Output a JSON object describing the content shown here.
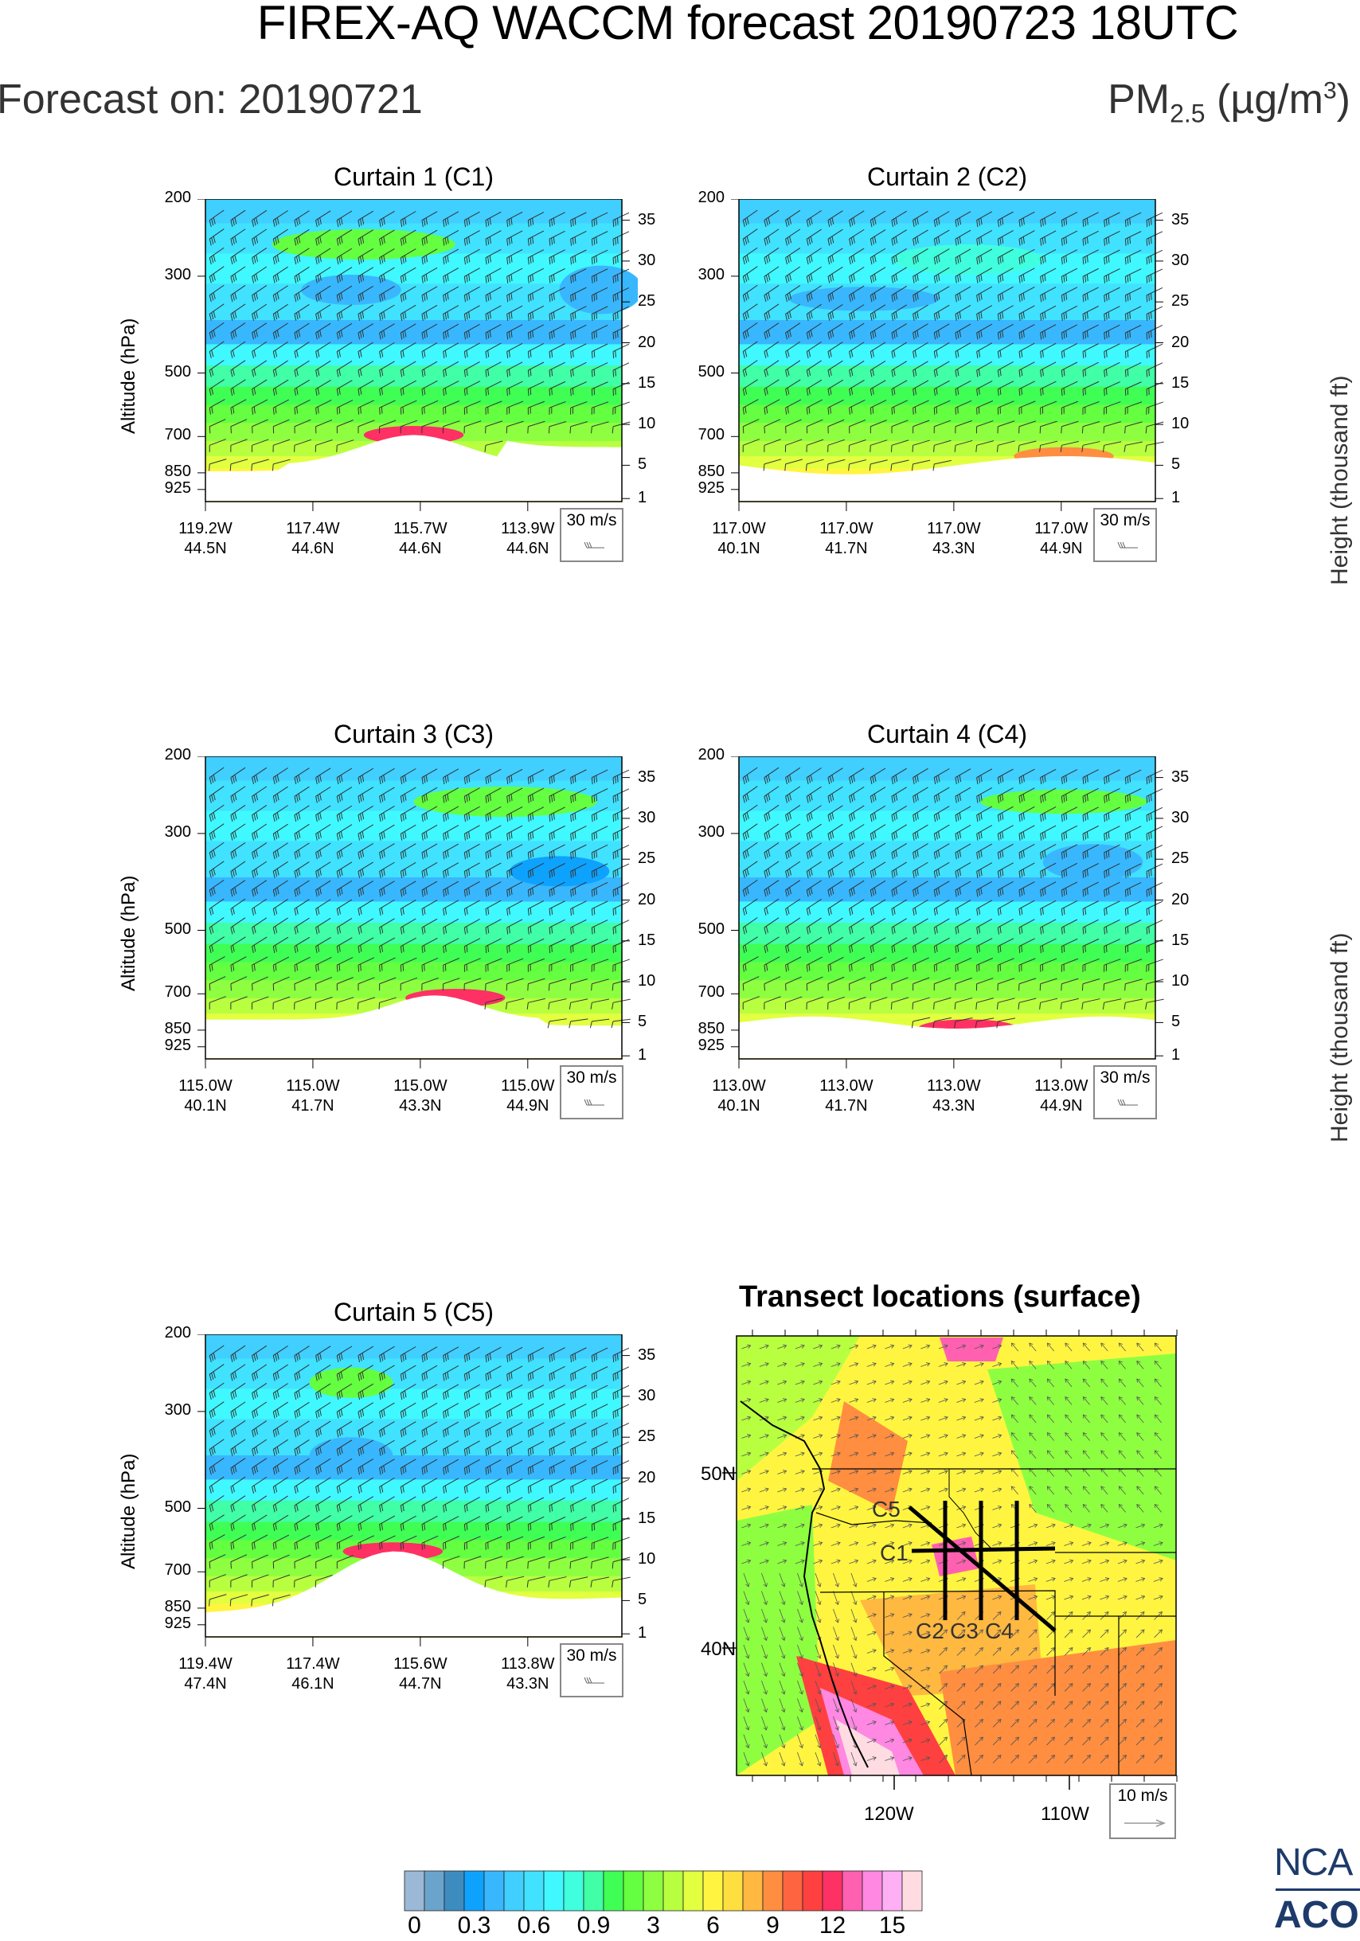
{
  "header": {
    "title": "FIREX-AQ WACCM forecast 20190723 18UTC",
    "forecast_on": "Forecast on: 20190721",
    "units_base": "PM",
    "units_sub": "2.5",
    "units_mid": " (µg/m",
    "units_sup": "3",
    "units_end": ")"
  },
  "right_axis_title": "Height (thousand ft)",
  "left_axis_title": "Altitude (hPa)",
  "wind_reference": {
    "curtain_label": "30 m/s",
    "map_label": "10 m/s"
  },
  "chart_data": [
    {
      "type": "heatmap",
      "title": "Curtain 1 (C1)",
      "ylabel": "Altitude (hPa)",
      "y2label": "Height (thousand ft)",
      "yticks": [
        "200",
        "300",
        "500",
        "700",
        "850",
        "925"
      ],
      "y2ticks": [
        "35",
        "30",
        "25",
        "20",
        "15",
        "10",
        "5",
        "1"
      ],
      "xticks": [
        {
          "lon": "119.2W",
          "lat": "44.5N"
        },
        {
          "lon": "117.4W",
          "lat": "44.6N"
        },
        {
          "lon": "115.7W",
          "lat": "44.6N"
        },
        {
          "lon": "113.9W",
          "lat": "44.6N"
        }
      ],
      "variable": "PM2.5 (ug/m3)",
      "features": "green aerosol layer near 250 hPa mid-transect; high values (red/pink) near surface around 115.7W"
    },
    {
      "type": "heatmap",
      "title": "Curtain 2 (C2)",
      "yticks": [
        "200",
        "300",
        "500",
        "700",
        "850",
        "925"
      ],
      "y2ticks": [
        "35",
        "30",
        "25",
        "20",
        "15",
        "10",
        "5",
        "1"
      ],
      "xticks": [
        {
          "lon": "117.0W",
          "lat": "40.1N"
        },
        {
          "lon": "117.0W",
          "lat": "41.7N"
        },
        {
          "lon": "117.0W",
          "lat": "43.3N"
        },
        {
          "lon": "117.0W",
          "lat": "44.9N"
        }
      ],
      "variable": "PM2.5 (ug/m3)"
    },
    {
      "type": "heatmap",
      "title": "Curtain 3 (C3)",
      "ylabel": "Altitude (hPa)",
      "yticks": [
        "200",
        "300",
        "500",
        "700",
        "850",
        "925"
      ],
      "y2ticks": [
        "35",
        "30",
        "25",
        "20",
        "15",
        "10",
        "5",
        "1"
      ],
      "xticks": [
        {
          "lon": "115.0W",
          "lat": "40.1N"
        },
        {
          "lon": "115.0W",
          "lat": "41.7N"
        },
        {
          "lon": "115.0W",
          "lat": "43.3N"
        },
        {
          "lon": "115.0W",
          "lat": "44.9N"
        }
      ],
      "variable": "PM2.5 (ug/m3)"
    },
    {
      "type": "heatmap",
      "title": "Curtain 4 (C4)",
      "yticks": [
        "200",
        "300",
        "500",
        "700",
        "850",
        "925"
      ],
      "y2ticks": [
        "35",
        "30",
        "25",
        "20",
        "15",
        "10",
        "5",
        "1"
      ],
      "xticks": [
        {
          "lon": "113.0W",
          "lat": "40.1N"
        },
        {
          "lon": "113.0W",
          "lat": "41.7N"
        },
        {
          "lon": "113.0W",
          "lat": "43.3N"
        },
        {
          "lon": "113.0W",
          "lat": "44.9N"
        }
      ],
      "variable": "PM2.5 (ug/m3)"
    },
    {
      "type": "heatmap",
      "title": "Curtain 5 (C5)",
      "ylabel": "Altitude (hPa)",
      "yticks": [
        "200",
        "300",
        "500",
        "700",
        "850",
        "925"
      ],
      "y2ticks": [
        "35",
        "30",
        "25",
        "20",
        "15",
        "10",
        "5",
        "1"
      ],
      "xticks": [
        {
          "lon": "119.4W",
          "lat": "47.4N"
        },
        {
          "lon": "117.4W",
          "lat": "46.1N"
        },
        {
          "lon": "115.6W",
          "lat": "44.7N"
        },
        {
          "lon": "113.8W",
          "lat": "43.3N"
        }
      ],
      "variable": "PM2.5 (ug/m3)"
    },
    {
      "type": "heatmap",
      "title": "Transect locations (surface)",
      "xticks": [
        "120W",
        "110W"
      ],
      "yticks": [
        "50N",
        "40N"
      ],
      "transects": [
        "C1",
        "C2",
        "C3",
        "C4",
        "C5"
      ],
      "variable": "PM2.5 (ug/m3)"
    }
  ],
  "colorbar": {
    "labels": [
      "0",
      "0.3",
      "0.6",
      "0.9",
      "3",
      "6",
      "9",
      "12",
      "15"
    ],
    "colors": [
      "#9bb8d6",
      "#6aa4cc",
      "#3c8cc0",
      "#0ea2ff",
      "#38b7ff",
      "#40cfff",
      "#40e2ff",
      "#40f8ff",
      "#40ffde",
      "#40ffa6",
      "#40ff54",
      "#64ff40",
      "#8eff40",
      "#b8ff40",
      "#e2ff40",
      "#fff540",
      "#ffde40",
      "#ffb840",
      "#ff8e40",
      "#ff6440",
      "#ff4040",
      "#ff3064",
      "#ff60b0",
      "#ff88e2",
      "#ffb0f4",
      "#ffdce2"
    ]
  },
  "logo": {
    "line1": "NCA",
    "line2": "ACO"
  }
}
